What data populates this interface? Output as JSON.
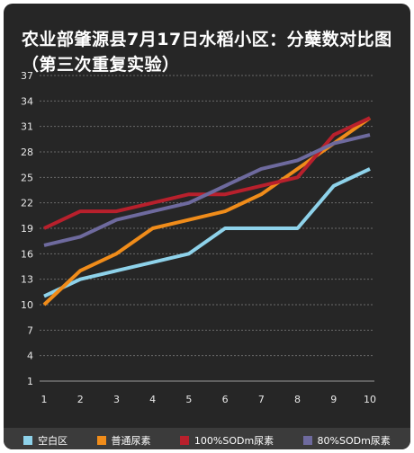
{
  "chart_data": {
    "type": "line",
    "title": "农业部肇源县7月17日水稻小区：分蘖数对比图（第三次重复实验）",
    "xlabel": "",
    "ylabel": "",
    "x": [
      1,
      2,
      3,
      4,
      5,
      6,
      7,
      8,
      9,
      10
    ],
    "y_ticks": [
      1,
      4,
      7,
      10,
      13,
      16,
      19,
      22,
      25,
      28,
      31,
      34,
      37
    ],
    "ylim": [
      1,
      37
    ],
    "grid": true,
    "legend_position": "bottom",
    "series": [
      {
        "name": "空白区",
        "color": "#8ed2ea",
        "values": [
          11,
          13,
          14,
          15,
          16,
          19,
          19,
          19,
          24,
          26
        ]
      },
      {
        "name": "普通尿素",
        "color": "#f08c1a",
        "values": [
          10,
          14,
          16,
          19,
          20,
          21,
          23,
          26,
          29,
          32
        ]
      },
      {
        "name": "100%SODm尿素",
        "color": "#b8202c",
        "values": [
          19,
          21,
          21,
          22,
          23,
          23,
          24,
          25,
          30,
          32
        ]
      },
      {
        "name": "80%SODm尿素",
        "color": "#6e6a9e",
        "values": [
          17,
          18,
          20,
          21,
          22,
          24,
          26,
          27,
          29,
          30
        ]
      }
    ]
  }
}
